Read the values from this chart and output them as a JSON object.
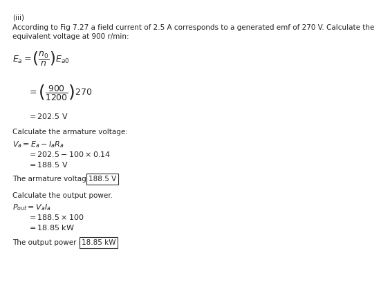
{
  "background_color": "#ffffff",
  "text_color": "#222222",
  "part_label": "(iii)",
  "intro_line1": "According to Fig 7.27 a field current of 2.5 A corresponds to a generated emf of 270 V. Calculate the",
  "intro_line2": "equivalent voltage at 900 r/min:",
  "armature_heading": "Calculate the armature voltage:",
  "armature_result_pre": "The armature voltage is ",
  "armature_result_box": "188.5 V",
  "power_heading": "Calculate the output power.",
  "power_result_pre": "The output power is ",
  "power_result_box": "18.85 kW",
  "fs_small": 7.5,
  "fs_math": 8.0
}
